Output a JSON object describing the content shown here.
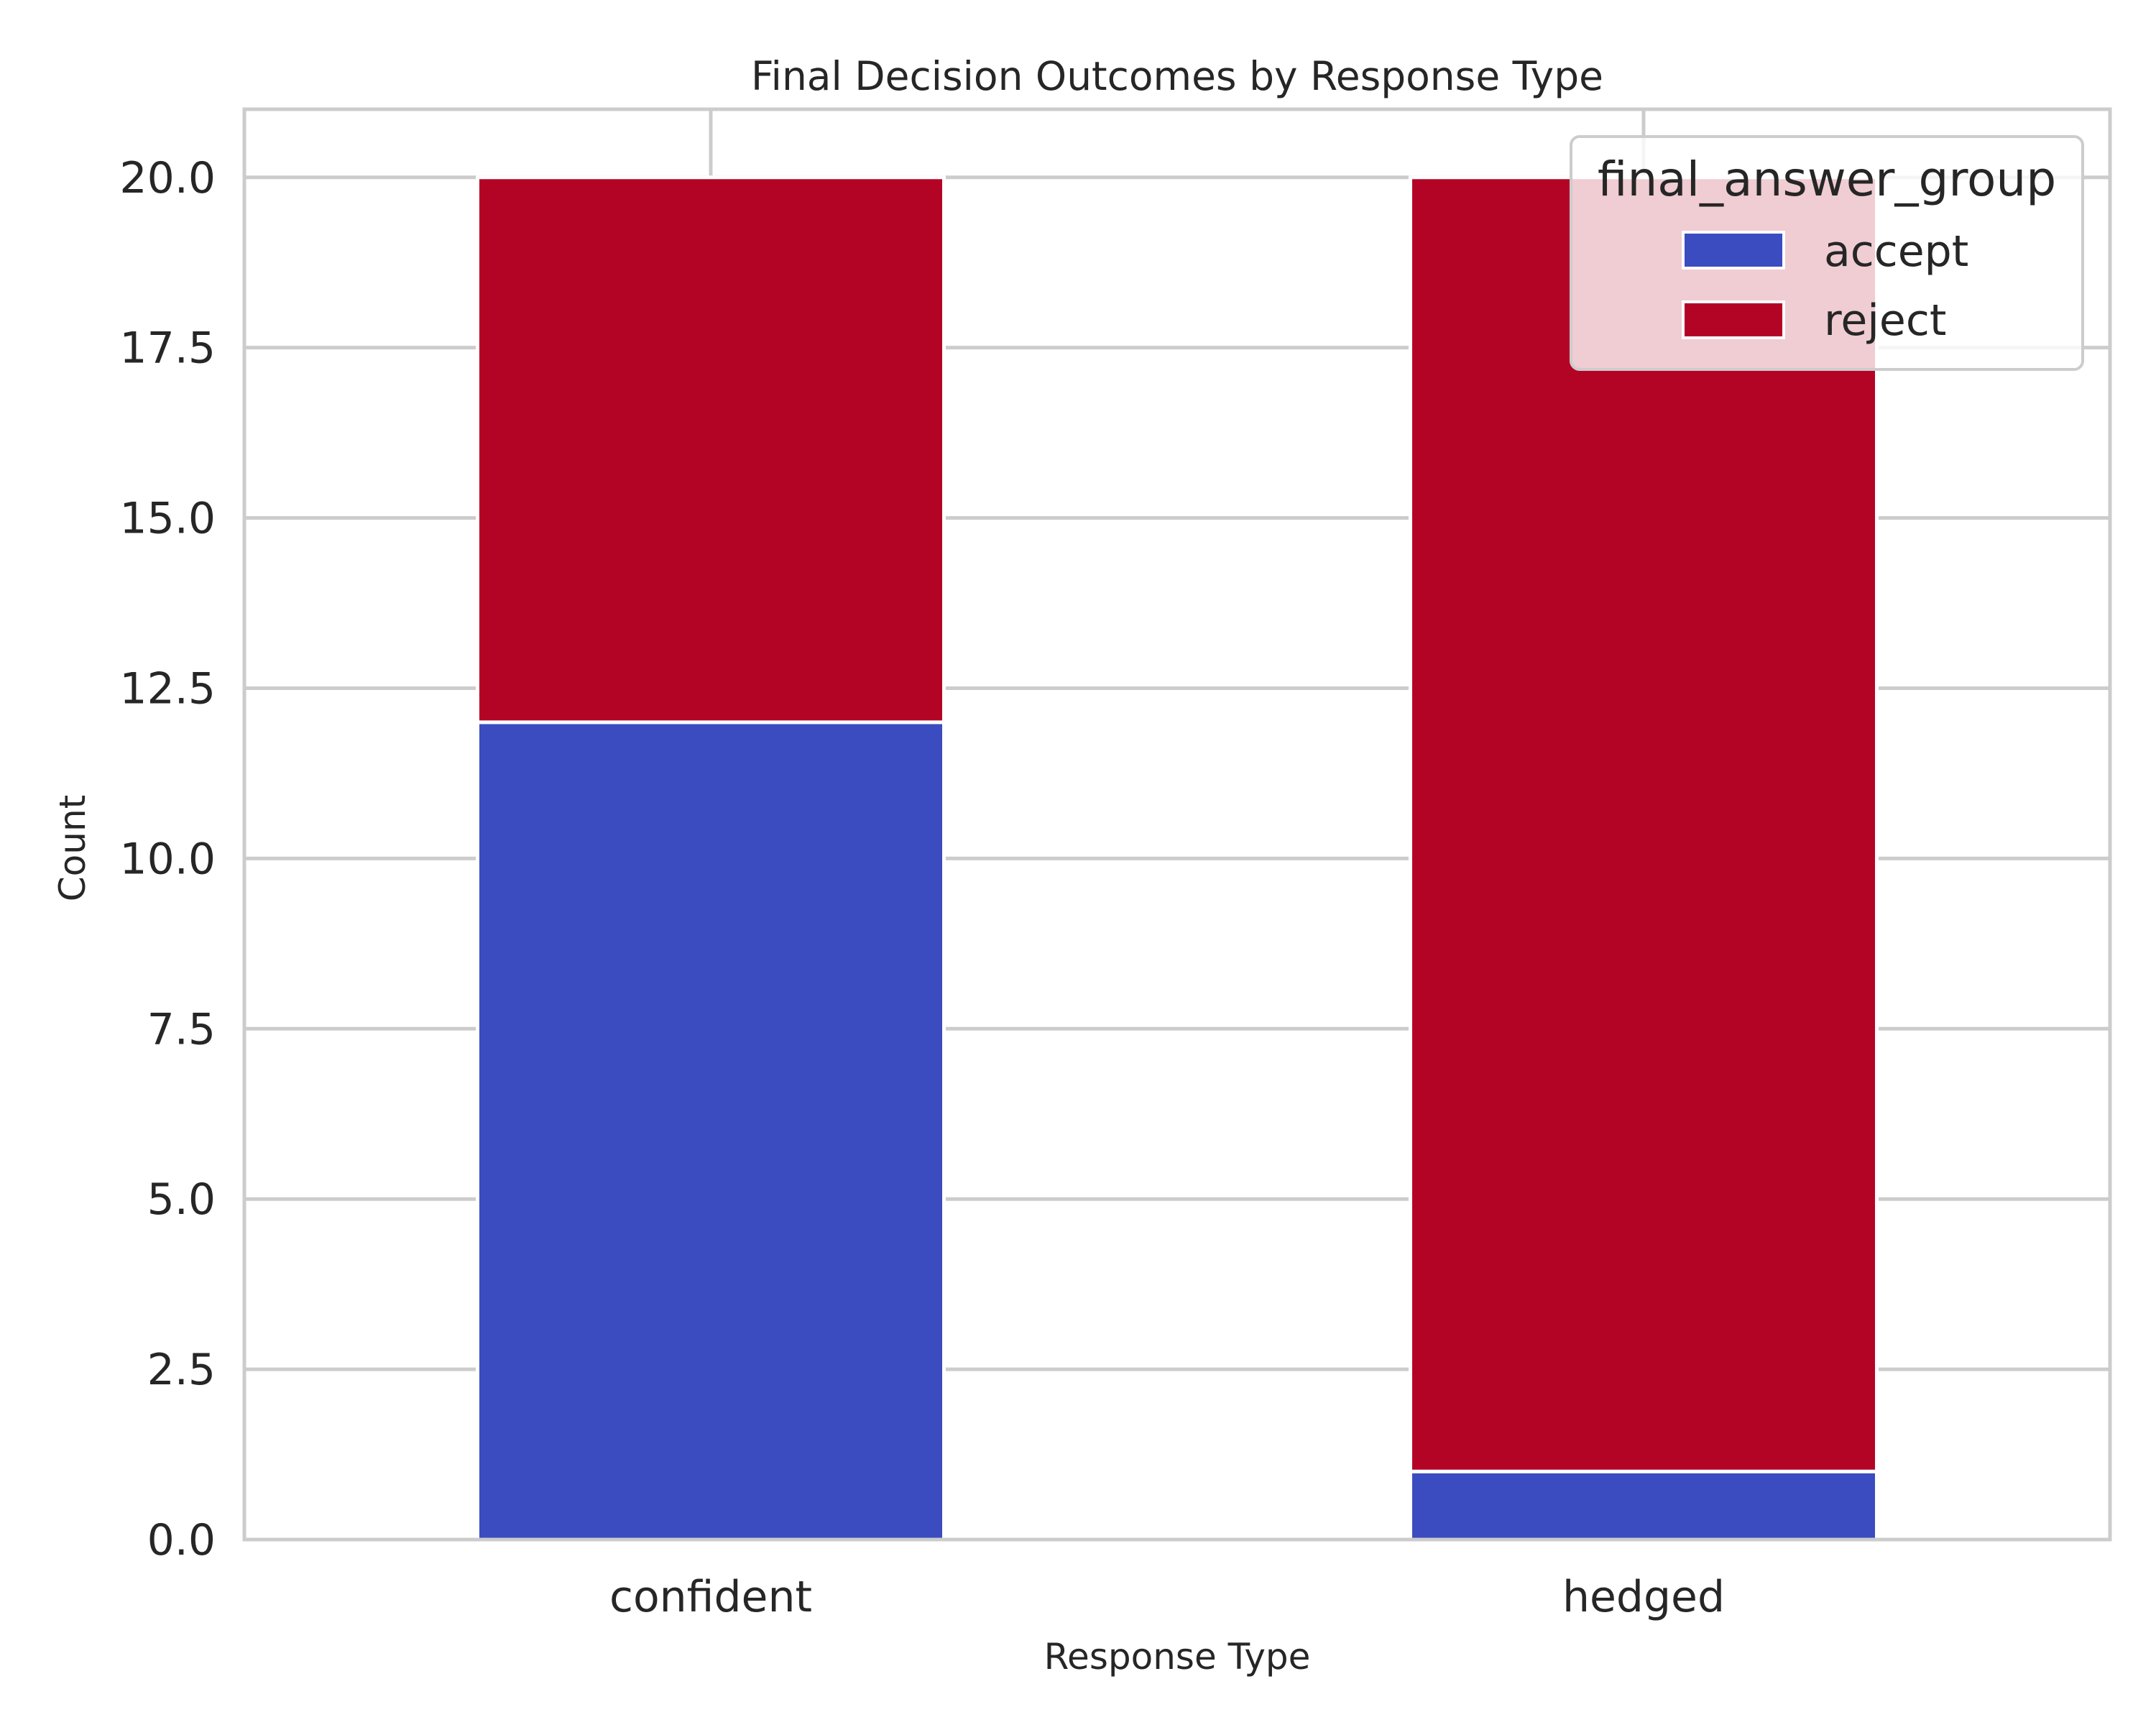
{
  "chart_data": {
    "type": "bar",
    "stacked": true,
    "title": "Final Decision Outcomes by Response Type",
    "xlabel": "Response Type",
    "ylabel": "Count",
    "categories": [
      "confident",
      "hedged"
    ],
    "series": [
      {
        "name": "accept",
        "values": [
          12,
          1
        ],
        "color": "#3b4cc0"
      },
      {
        "name": "reject",
        "values": [
          8,
          19
        ],
        "color": "#b40426"
      }
    ],
    "ylim": [
      0,
      21
    ],
    "yticks": [
      "0.0",
      "2.5",
      "5.0",
      "7.5",
      "10.0",
      "12.5",
      "15.0",
      "17.5",
      "20.0"
    ],
    "grid": true,
    "legend": {
      "title": "final_answer_group",
      "position": "top-right"
    }
  }
}
